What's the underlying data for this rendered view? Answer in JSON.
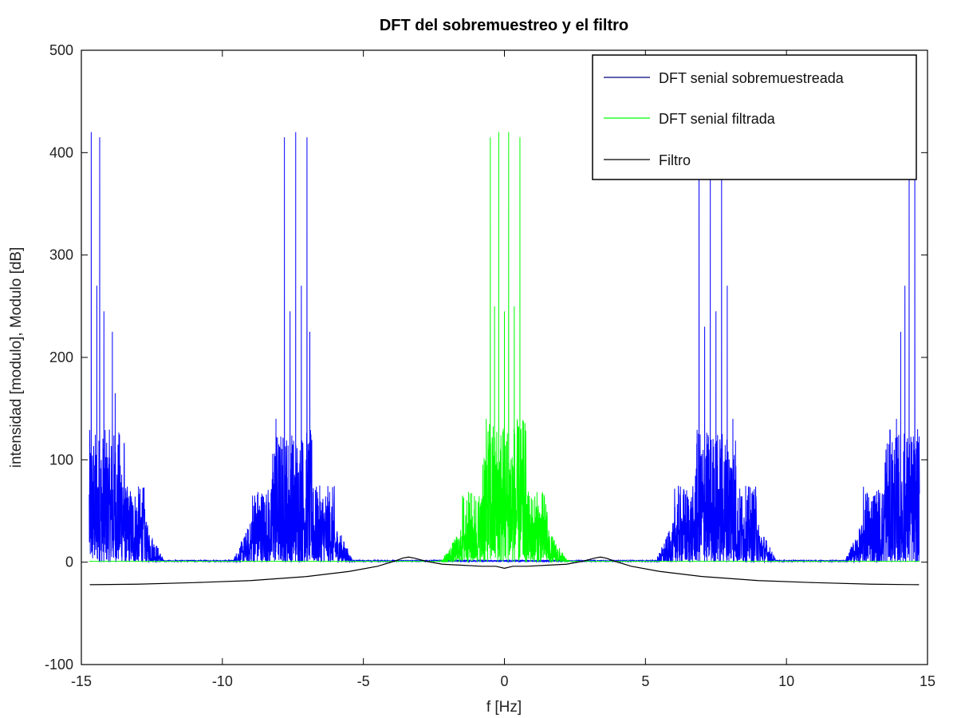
{
  "chart_data": {
    "type": "line",
    "title": "DFT del sobremuestreo y el filtro",
    "xlabel": "f [Hz]",
    "ylabel": "intensidad [modulo], Modulo [dB]",
    "xlim": [
      -15,
      15
    ],
    "ylim": [
      -100,
      500
    ],
    "xticks": [
      -15,
      -10,
      -5,
      0,
      5,
      10,
      15
    ],
    "yticks": [
      -100,
      0,
      100,
      200,
      300,
      400,
      500
    ],
    "grid": false,
    "legend_position": "top-right",
    "series": [
      {
        "name": "DFT senial sobremuestreada",
        "color": "#0000ff",
        "legend_color": "#000080",
        "clusters": [
          -14.2,
          -7.5,
          7.5,
          14.2
        ],
        "peaks": [
          [
            -14.65,
            420
          ],
          [
            -14.45,
            270
          ],
          [
            -14.35,
            415
          ],
          [
            -14.2,
            245
          ],
          [
            -13.9,
            225
          ],
          [
            -13.8,
            165
          ],
          [
            -8.1,
            140
          ],
          [
            -7.8,
            415
          ],
          [
            -7.6,
            245
          ],
          [
            -7.4,
            420
          ],
          [
            -7.2,
            270
          ],
          [
            -7.0,
            415
          ],
          [
            -6.9,
            225
          ],
          [
            6.9,
            415
          ],
          [
            7.1,
            230
          ],
          [
            7.3,
            420
          ],
          [
            7.5,
            245
          ],
          [
            7.7,
            395
          ],
          [
            7.9,
            270
          ],
          [
            8.1,
            140
          ],
          [
            13.9,
            140
          ],
          [
            14.05,
            225
          ],
          [
            14.2,
            270
          ],
          [
            14.35,
            415
          ],
          [
            14.55,
            415
          ],
          [
            14.7,
            90
          ]
        ]
      },
      {
        "name": "DFT senial filtrada",
        "color": "#00ff00",
        "legend_color": "#00ff00",
        "clusters": [
          0
        ],
        "peaks": [
          [
            -0.5,
            415
          ],
          [
            -0.35,
            250
          ],
          [
            -0.2,
            420
          ],
          [
            0.0,
            245
          ],
          [
            0.15,
            420
          ],
          [
            0.35,
            250
          ],
          [
            0.55,
            415
          ]
        ]
      },
      {
        "name": "Filtro",
        "color": "#000000",
        "legend_color": "#000000",
        "x": [
          -14.7,
          -13,
          -11,
          -9,
          -7,
          -5.5,
          -4.5,
          -3.9,
          -3.6,
          -3.4,
          -3.2,
          -2.8,
          -2.2,
          -1.5,
          -0.8,
          -0.3,
          0,
          0.3,
          0.8,
          1.5,
          2.2,
          2.8,
          3.2,
          3.4,
          3.6,
          3.9,
          4.5,
          5.5,
          7,
          9,
          11,
          13,
          14.7
        ],
        "y": [
          -22,
          -21.5,
          -20,
          -18,
          -14,
          -9,
          -4,
          1,
          4,
          5,
          4,
          1,
          -2,
          -3,
          -4,
          -4,
          -6,
          -4,
          -4,
          -3,
          -2,
          1,
          4,
          5,
          4,
          1,
          -4,
          -9,
          -14,
          -18,
          -20,
          -21.5,
          -22
        ]
      }
    ]
  }
}
